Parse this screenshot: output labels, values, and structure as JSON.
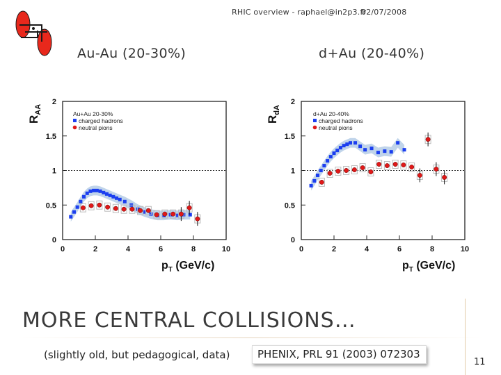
{
  "header": {
    "text": "RHIC overview - raphael@in2p3.fr",
    "date": "02/07/2008"
  },
  "logo": {
    "icon": "phenix-logo-icon",
    "colors": {
      "red": "#e8281c",
      "dark": "#1a1a1a"
    }
  },
  "subtitles": {
    "left": "Au-Au (20-30%)",
    "right": "d+Au (20-40%)"
  },
  "title": "MORE CENTRAL COLLISIONS…",
  "caption": "(slightly old, but pedagogical, data)",
  "reference": "PHENIX, PRL 91 (2003) 072303",
  "page_number": "11",
  "colors": {
    "blue": "#1b3ef0",
    "red": "#e01818",
    "band": "#b9cfe8",
    "grey_band": "#d9d9d9"
  },
  "chart_data": [
    {
      "type": "scatter",
      "ylabel_main": "R",
      "ylabel_sub": "AA",
      "xlabel_main": "p",
      "xlabel_sub": "T",
      "xlabel_rest": " (GeV/c)",
      "xlim": [
        0,
        10
      ],
      "ylim": [
        0,
        2
      ],
      "xticks": [
        "0",
        "2",
        "4",
        "6",
        "8",
        "10"
      ],
      "yticks": [
        "0",
        "0.5",
        "1",
        "1.5",
        "2"
      ],
      "reference_line": 1,
      "legend_title": "Au+Au 20-30%",
      "legend": [
        "charged hadrons",
        "neutral pions"
      ],
      "series": [
        {
          "name": "charged hadrons",
          "marker": "square",
          "x": [
            0.5,
            0.7,
            0.9,
            1.1,
            1.3,
            1.5,
            1.7,
            1.9,
            2.1,
            2.3,
            2.5,
            2.7,
            2.9,
            3.1,
            3.3,
            3.5,
            3.8,
            4.2,
            4.6,
            5.0,
            5.4,
            5.8,
            6.2,
            6.6,
            7.0,
            7.4,
            7.8
          ],
          "y": [
            0.33,
            0.4,
            0.47,
            0.55,
            0.62,
            0.67,
            0.7,
            0.71,
            0.71,
            0.7,
            0.68,
            0.66,
            0.64,
            0.62,
            0.6,
            0.58,
            0.55,
            0.5,
            0.44,
            0.4,
            0.37,
            0.35,
            0.35,
            0.36,
            0.35,
            0.36,
            0.36
          ]
        },
        {
          "name": "neutral pions",
          "marker": "circle",
          "x": [
            1.25,
            1.75,
            2.25,
            2.75,
            3.25,
            3.75,
            4.25,
            4.75,
            5.25,
            5.75,
            6.25,
            6.75,
            7.25,
            7.75,
            8.25
          ],
          "y": [
            0.46,
            0.49,
            0.5,
            0.47,
            0.45,
            0.44,
            0.44,
            0.42,
            0.42,
            0.36,
            0.37,
            0.37,
            0.37,
            0.46,
            0.3
          ]
        }
      ]
    },
    {
      "type": "scatter",
      "ylabel_main": "R",
      "ylabel_sub": "dA",
      "xlabel_main": "p",
      "xlabel_sub": "T",
      "xlabel_rest": " (GeV/c)",
      "xlim": [
        0,
        10
      ],
      "ylim": [
        0,
        2
      ],
      "xticks": [
        "0",
        "2",
        "4",
        "6",
        "8",
        "10"
      ],
      "yticks": [
        "0",
        "0.5",
        "1",
        "1.5",
        "2"
      ],
      "reference_line": 1,
      "legend_title": "d+Au 20-40%",
      "legend": [
        "charged hadrons",
        "neutral pions"
      ],
      "series": [
        {
          "name": "charged hadrons",
          "marker": "square",
          "x": [
            0.6,
            0.8,
            1.0,
            1.2,
            1.4,
            1.6,
            1.8,
            2.0,
            2.2,
            2.4,
            2.6,
            2.8,
            3.0,
            3.3,
            3.6,
            3.9,
            4.3,
            4.7,
            5.1,
            5.5,
            5.9,
            6.3
          ],
          "y": [
            0.78,
            0.85,
            0.93,
            1.0,
            1.07,
            1.14,
            1.2,
            1.25,
            1.29,
            1.33,
            1.36,
            1.38,
            1.4,
            1.4,
            1.35,
            1.3,
            1.32,
            1.26,
            1.28,
            1.27,
            1.4,
            1.3
          ]
        },
        {
          "name": "neutral pions",
          "marker": "circle",
          "x": [
            1.25,
            1.75,
            2.25,
            2.75,
            3.25,
            3.75,
            4.25,
            4.75,
            5.25,
            5.75,
            6.25,
            6.75,
            7.25,
            7.75,
            8.25,
            8.75
          ],
          "y": [
            0.83,
            0.96,
            0.99,
            1.0,
            1.01,
            1.04,
            0.98,
            1.09,
            1.07,
            1.09,
            1.08,
            1.05,
            0.93,
            1.45,
            1.02,
            0.9
          ]
        }
      ]
    }
  ]
}
